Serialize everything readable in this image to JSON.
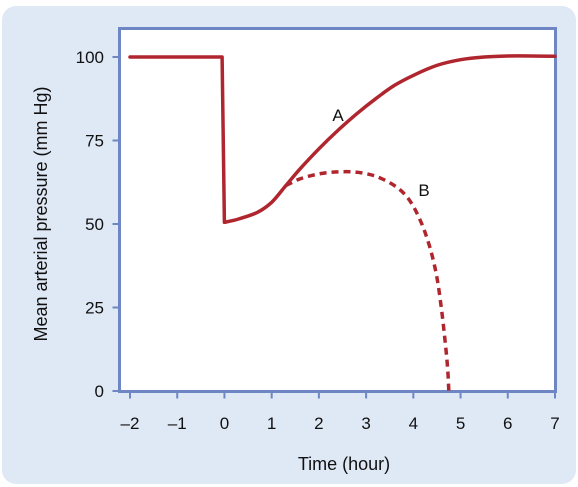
{
  "chart_data": {
    "type": "line",
    "title": "",
    "xlabel": "Time (hour)",
    "ylabel": "Mean arterial pressure (mm Hg)",
    "xlim": [
      -2,
      7
    ],
    "ylim": [
      0,
      100
    ],
    "x_ticks": [
      "–2",
      "–1",
      "0",
      "1",
      "2",
      "3",
      "4",
      "5",
      "6",
      "7"
    ],
    "y_ticks": [
      "0",
      "25",
      "50",
      "75",
      "100"
    ],
    "grid": false,
    "colors": {
      "series": "#b0262e",
      "frame": "#6f86c4",
      "panel": "#dfe8f5"
    },
    "series": [
      {
        "name": "A",
        "style": "solid",
        "x": [
          -2,
          -0.05,
          0,
          0.3,
          0.7,
          1.0,
          1.3,
          1.6,
          2.0,
          2.4,
          2.8,
          3.2,
          3.6,
          4.0,
          4.5,
          5.0,
          5.5,
          6.0,
          6.5,
          7.0
        ],
        "values": [
          100,
          100,
          50.5,
          51.5,
          53.5,
          56.5,
          61.5,
          66.5,
          72.5,
          78,
          83,
          87.5,
          91.5,
          94.5,
          97.5,
          99.2,
          100,
          100.3,
          100.3,
          100.2
        ]
      },
      {
        "name": "B",
        "style": "dashed",
        "x": [
          1.3,
          1.6,
          2.0,
          2.4,
          2.8,
          3.2,
          3.6,
          3.9,
          4.15,
          4.35,
          4.5,
          4.6,
          4.68,
          4.73,
          4.75
        ],
        "values": [
          61.5,
          63.5,
          65.0,
          65.6,
          65.5,
          64.3,
          61.5,
          57.5,
          51,
          43,
          34,
          24,
          14,
          6,
          0
        ]
      }
    ]
  }
}
